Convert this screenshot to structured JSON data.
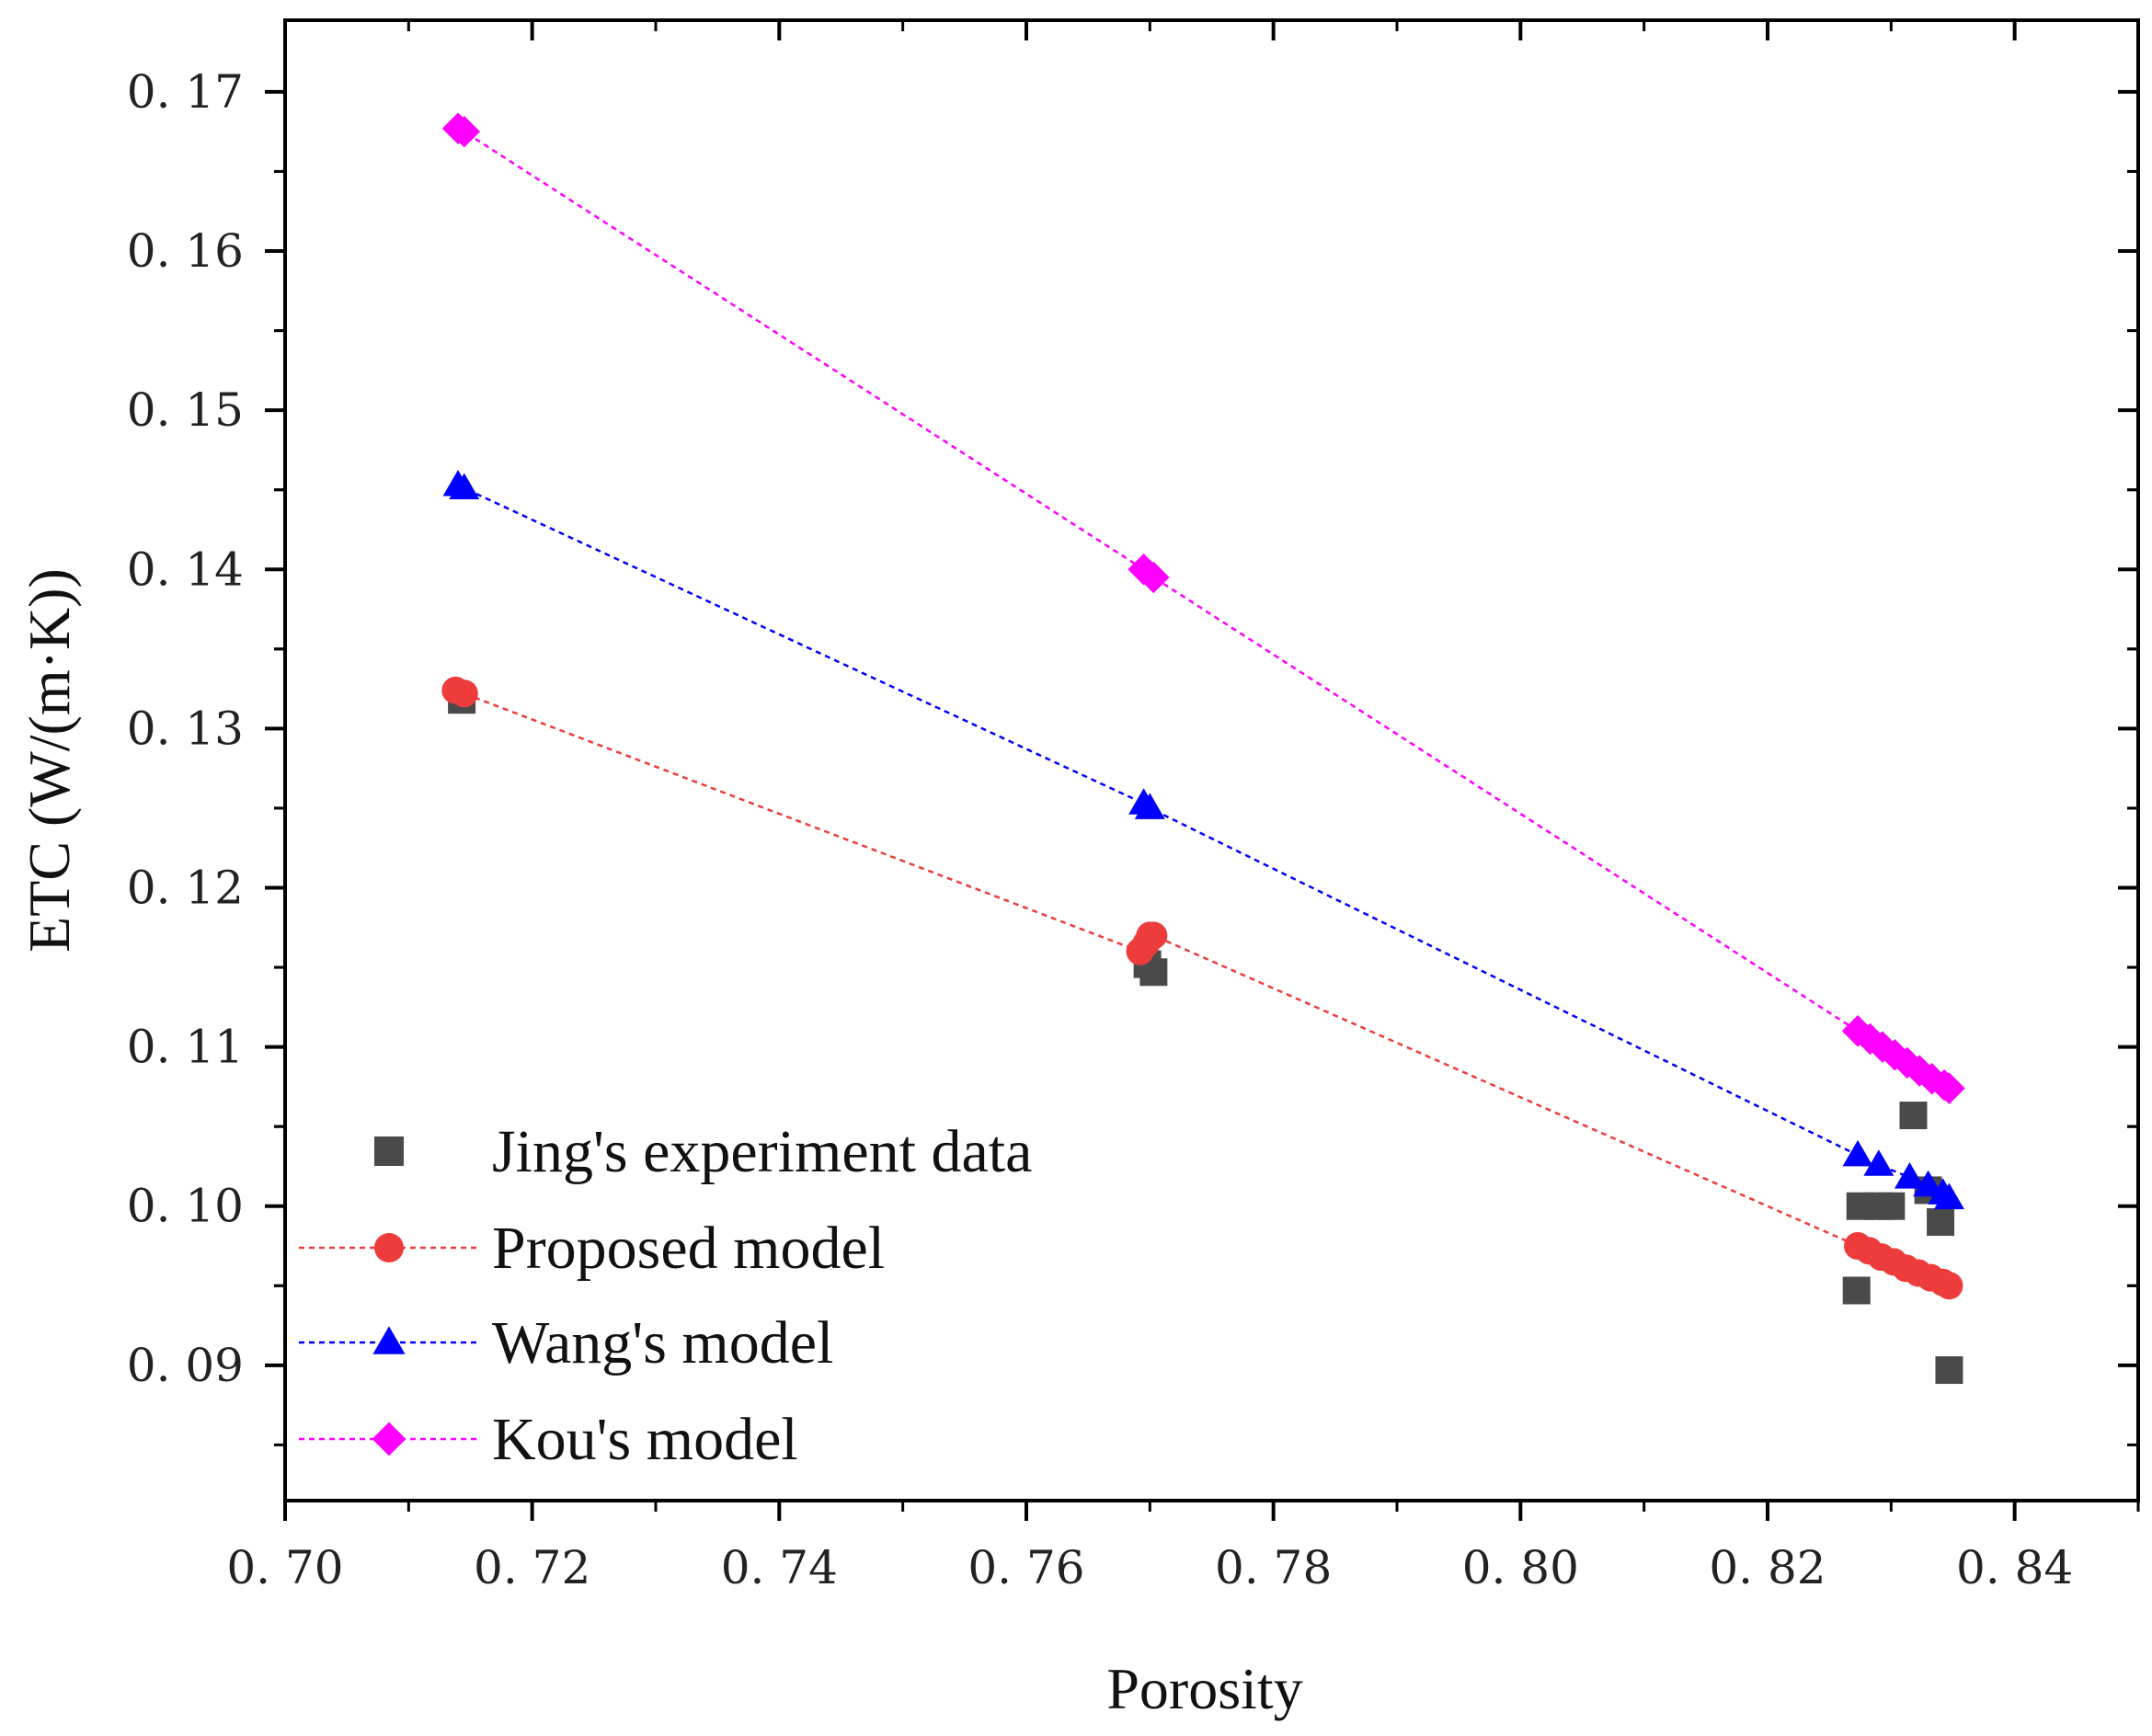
{
  "chart_data": {
    "type": "scatter",
    "title": "",
    "xlabel": "Porosity",
    "ylabel": "ETC (W/(m·K))",
    "xlim": [
      0.7,
      0.85
    ],
    "ylim": [
      0.0815,
      0.1745
    ],
    "xticks": [
      0.7,
      0.72,
      0.74,
      0.76,
      0.78,
      0.8,
      0.82,
      0.84
    ],
    "yticks": [
      0.09,
      0.1,
      0.11,
      0.12,
      0.13,
      0.14,
      0.15,
      0.16,
      0.17
    ],
    "xtick_labels": [
      "0. 70",
      "0. 72",
      "0. 74",
      "0. 76",
      "0. 78",
      "0. 80",
      "0. 82",
      "0. 84"
    ],
    "ytick_labels": [
      "0. 09",
      "0. 10",
      "0. 11",
      "0. 12",
      "0. 13",
      "0. 14",
      "0. 15",
      "0. 16",
      "0. 17"
    ],
    "grid": false,
    "legend_position": "bottom-left",
    "series": [
      {
        "name": "Jing's experiment data",
        "marker": "square",
        "color": "#4a4a4a",
        "line": false,
        "x": [
          0.7143,
          0.7703,
          0.7698,
          0.8272,
          0.8275,
          0.829,
          0.83,
          0.8318,
          0.833,
          0.834,
          0.8347
        ],
        "y": [
          0.1318,
          0.1147,
          0.1152,
          0.0947,
          0.1,
          0.1,
          0.1,
          0.1057,
          0.101,
          0.099,
          0.0897
        ]
      },
      {
        "name": "Proposed model",
        "marker": "circle",
        "color": "#ee3b3b",
        "line": true,
        "x": [
          0.7138,
          0.7145,
          0.7692,
          0.7697,
          0.77,
          0.7703,
          0.8273,
          0.8282,
          0.8292,
          0.8302,
          0.8312,
          0.8322,
          0.8332,
          0.8342,
          0.8347
        ],
        "y": [
          0.1324,
          0.1322,
          0.116,
          0.1165,
          0.117,
          0.117,
          0.0975,
          0.0972,
          0.0968,
          0.0965,
          0.0961,
          0.0958,
          0.0955,
          0.0952,
          0.095
        ]
      },
      {
        "name": "Wang's model",
        "marker": "triangle",
        "color": "#0000ff",
        "line": true,
        "x": [
          0.714,
          0.7145,
          0.7695,
          0.77,
          0.8273,
          0.829,
          0.8315,
          0.833,
          0.8342,
          0.8347
        ],
        "y": [
          0.1453,
          0.1451,
          0.1253,
          0.125,
          0.1032,
          0.1026,
          0.1018,
          0.1013,
          0.1008,
          0.1005
        ]
      },
      {
        "name": "Kou's model",
        "marker": "diamond",
        "color": "#ff00ff",
        "line": true,
        "x": [
          0.714,
          0.7145,
          0.7695,
          0.7703,
          0.8273,
          0.8283,
          0.8293,
          0.8303,
          0.8313,
          0.8323,
          0.8333,
          0.8343,
          0.8347
        ],
        "y": [
          0.1677,
          0.1675,
          0.14,
          0.1395,
          0.111,
          0.1105,
          0.11,
          0.1095,
          0.109,
          0.1085,
          0.108,
          0.1076,
          0.1074
        ]
      }
    ]
  }
}
